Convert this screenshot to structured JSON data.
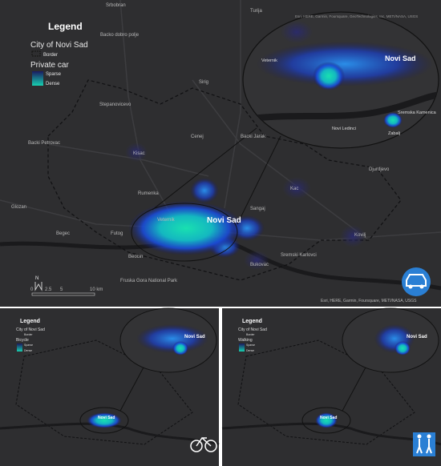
{
  "main_map": {
    "legend": {
      "title": "Legend",
      "city": "City of Novi Sad",
      "border": "Border",
      "mode": "Private car",
      "sparse": "Sparse",
      "dense": "Dense"
    },
    "places": [
      "Srbobran",
      "Turija",
      "Backo dobro polje",
      "Sirig",
      "Stepanovicevo",
      "Backi Petrovac",
      "Kisac",
      "Cenej",
      "Backi Jarak",
      "Rumenka",
      "Glozan",
      "Begec",
      "Futog",
      "Veternik",
      "Novi Sad",
      "Sangaj",
      "Kac",
      "Kovilj",
      "Beocin",
      "Bukovac",
      "Sremski Karlovci",
      "Fruska Gora National Park",
      "Djurdjevo"
    ],
    "inset": {
      "attribution": "Esri, HERE, Garmin, Foursquare, GeoTechnologies, Inc, METI/NASA, USGS",
      "places": [
        "Veternik",
        "Novi Sad",
        "Novi Ledinci",
        "Sremska Kamenica",
        "Zabalj"
      ]
    },
    "scale": [
      "0",
      "2.5",
      "5",
      "10 km"
    ],
    "north": "N",
    "attribution": "Esri, HERE, Garmin, Foursquare, METI/NASA, USGS"
  },
  "bicycle_map": {
    "legend": {
      "title": "Legend",
      "city": "City of Novi Sad",
      "border": "Border",
      "mode": "Bicycle",
      "sparse": "Sparse",
      "dense": "Dense"
    },
    "place": "Novi Sad",
    "inset_place": "Novi Sad"
  },
  "walking_map": {
    "legend": {
      "title": "Legend",
      "city": "City of Novi Sad",
      "border": "Border",
      "mode": "Walking",
      "sparse": "Sparse",
      "dense": "Dense"
    },
    "place": "Novi Sad",
    "inset_place": "Novi Sad"
  }
}
